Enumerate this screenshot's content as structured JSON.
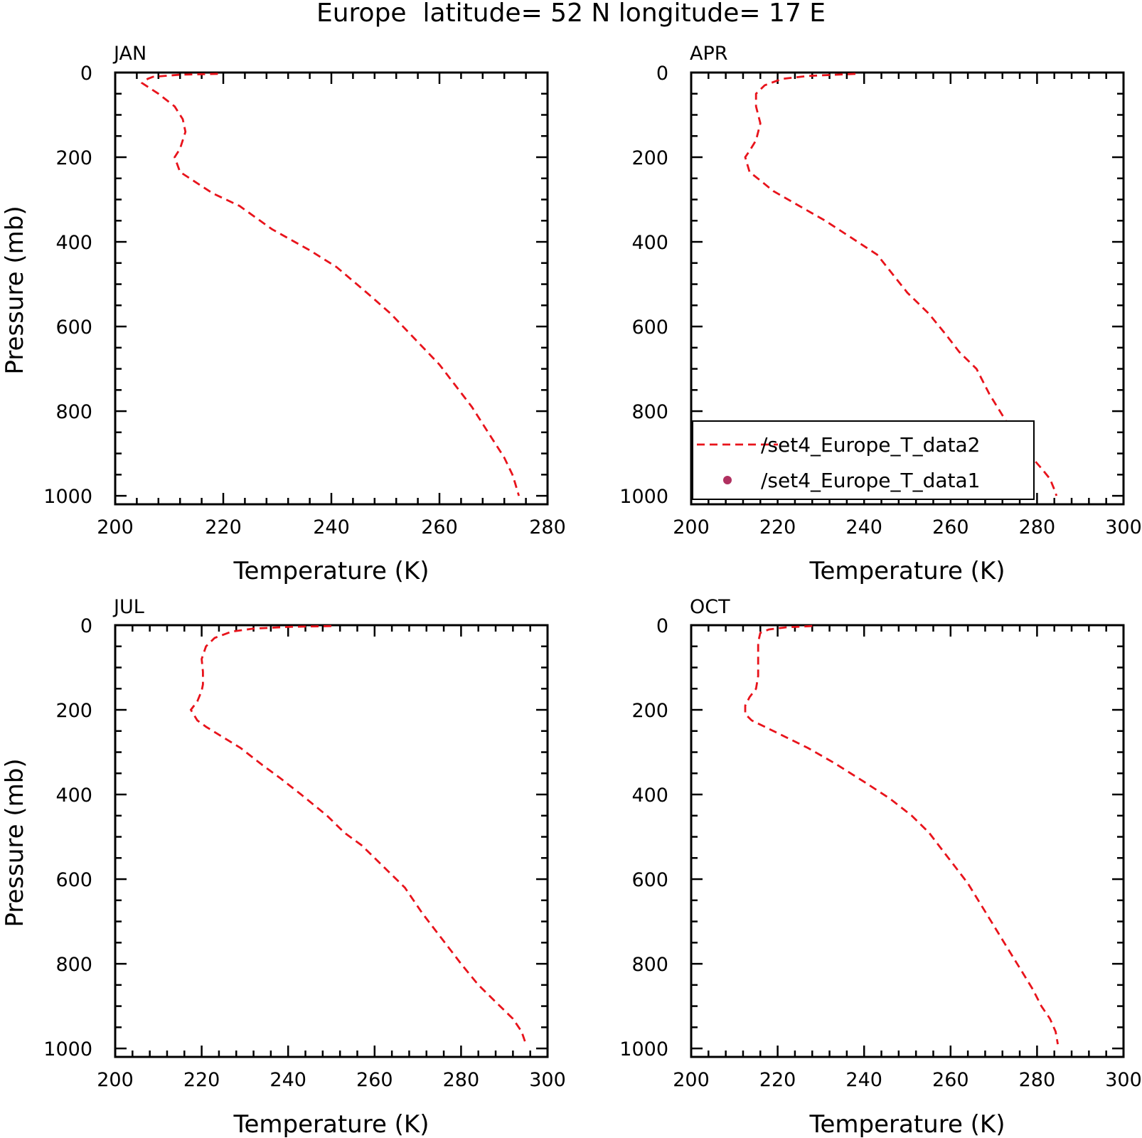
{
  "figure": {
    "title": "Europe  latitude= 52 N longitude= 17 E"
  },
  "chart_data": [
    {
      "type": "line",
      "title": "JAN",
      "xlabel": "Temperature (K)",
      "ylabel": "Pressure (mb)",
      "xlim": [
        200,
        280
      ],
      "ylim": [
        1020,
        0
      ],
      "y_inverted": true,
      "xticks": [
        200,
        220,
        240,
        260,
        280
      ],
      "yticks": [
        0,
        200,
        400,
        600,
        800,
        1000
      ],
      "grid": false,
      "series": [
        {
          "name": "/set4_Europe_T_data2",
          "color": "#e8131b",
          "style": "dashed",
          "points": [
            [
              219,
              3
            ],
            [
              212,
              5
            ],
            [
              207,
              10
            ],
            [
              206,
              15
            ],
            [
              205,
              25
            ],
            [
              208,
              50
            ],
            [
              211,
              80
            ],
            [
              212.5,
              110
            ],
            [
              213,
              140
            ],
            [
              212,
              180
            ],
            [
              211,
              200
            ],
            [
              212,
              235
            ],
            [
              215,
              260
            ],
            [
              218,
              285
            ],
            [
              223,
              315
            ],
            [
              229,
              370
            ],
            [
              236,
              420
            ],
            [
              241,
              460
            ],
            [
              247,
              525
            ],
            [
              251,
              570
            ],
            [
              254,
              610
            ],
            [
              257,
              650
            ],
            [
              260,
              690
            ],
            [
              263,
              740
            ],
            [
              266,
              790
            ],
            [
              268,
              830
            ],
            [
              270,
              870
            ],
            [
              272,
              910
            ],
            [
              273.5,
              950
            ],
            [
              274,
              970
            ],
            [
              274.7,
              1000
            ]
          ]
        }
      ]
    },
    {
      "type": "line",
      "title": "APR",
      "xlabel": "Temperature (K)",
      "ylabel": "",
      "xlim": [
        200,
        300
      ],
      "ylim": [
        1020,
        0
      ],
      "y_inverted": true,
      "xticks": [
        200,
        220,
        240,
        260,
        280,
        300
      ],
      "yticks": [
        0,
        200,
        400,
        600,
        800,
        1000
      ],
      "grid": false,
      "legend": {
        "placement": "lower-left",
        "entries": [
          {
            "label": "/set4_Europe_T_data2",
            "color": "#e8131b",
            "marker": "dashed-line"
          },
          {
            "label": "/set4_Europe_T_data1",
            "color": "#b03060",
            "marker": "dot"
          }
        ]
      },
      "series": [
        {
          "name": "/set4_Europe_T_data2",
          "color": "#e8131b",
          "style": "dashed",
          "points": [
            [
              238,
              3
            ],
            [
              227,
              8
            ],
            [
              221,
              15
            ],
            [
              217,
              30
            ],
            [
              215,
              50
            ],
            [
              215,
              80
            ],
            [
              216,
              120
            ],
            [
              215,
              160
            ],
            [
              213.5,
              185
            ],
            [
              212.5,
              200
            ],
            [
              213.5,
              235
            ],
            [
              216,
              255
            ],
            [
              219,
              280
            ],
            [
              225,
              315
            ],
            [
              231,
              350
            ],
            [
              237,
              390
            ],
            [
              243,
              430
            ],
            [
              250,
              520
            ],
            [
              255,
              570
            ],
            [
              259,
              620
            ],
            [
              262,
              660
            ],
            [
              266,
              700
            ],
            [
              269,
              760
            ],
            [
              272,
              810
            ],
            [
              275,
              860
            ],
            [
              278,
              900
            ],
            [
              281,
              935
            ],
            [
              283,
              960
            ],
            [
              284,
              985
            ],
            [
              284.5,
              1000
            ]
          ]
        }
      ]
    },
    {
      "type": "line",
      "title": "JUL",
      "xlabel": "Temperature (K)",
      "ylabel": "Pressure (mb)",
      "xlim": [
        200,
        300
      ],
      "ylim": [
        1020,
        0
      ],
      "y_inverted": true,
      "xticks": [
        200,
        220,
        240,
        260,
        280,
        300
      ],
      "yticks": [
        0,
        200,
        400,
        600,
        800,
        1000
      ],
      "grid": false,
      "series": [
        {
          "name": "/set4_Europe_T_data2",
          "color": "#e8131b",
          "style": "dashed",
          "points": [
            [
              250,
              2
            ],
            [
              240,
              4
            ],
            [
              232,
              8
            ],
            [
              227,
              15
            ],
            [
              223,
              30
            ],
            [
              221,
              50
            ],
            [
              220,
              80
            ],
            [
              220.3,
              110
            ],
            [
              220.3,
              140
            ],
            [
              220,
              155
            ],
            [
              219,
              180
            ],
            [
              217.5,
              200
            ],
            [
              219,
              225
            ],
            [
              221,
              240
            ],
            [
              225,
              265
            ],
            [
              229,
              290
            ],
            [
              234,
              330
            ],
            [
              238,
              360
            ],
            [
              243,
              400
            ],
            [
              249,
              450
            ],
            [
              253,
              490
            ],
            [
              257,
              520
            ],
            [
              262,
              570
            ],
            [
              267,
              620
            ],
            [
              271,
              680
            ],
            [
              274,
              720
            ],
            [
              277,
              760
            ],
            [
              280,
              800
            ],
            [
              284,
              850
            ],
            [
              288,
              890
            ],
            [
              292,
              930
            ],
            [
              294,
              960
            ],
            [
              295,
              990
            ]
          ]
        }
      ]
    },
    {
      "type": "line",
      "title": "OCT",
      "xlabel": "Temperature (K)",
      "ylabel": "",
      "xlim": [
        200,
        300
      ],
      "ylim": [
        1020,
        0
      ],
      "y_inverted": true,
      "xticks": [
        200,
        220,
        240,
        260,
        280,
        300
      ],
      "yticks": [
        0,
        200,
        400,
        600,
        800,
        1000
      ],
      "grid": false,
      "series": [
        {
          "name": "/set4_Europe_T_data2",
          "color": "#e8131b",
          "style": "dashed",
          "points": [
            [
              228,
              2
            ],
            [
              222,
              5
            ],
            [
              218,
              10
            ],
            [
              216,
              18
            ],
            [
              215.5,
              40
            ],
            [
              215.5,
              80
            ],
            [
              215.5,
              120
            ],
            [
              215,
              150
            ],
            [
              213.5,
              170
            ],
            [
              212.5,
              190
            ],
            [
              212.5,
              210
            ],
            [
              214,
              225
            ],
            [
              217,
              240
            ],
            [
              222,
              265
            ],
            [
              227,
              290
            ],
            [
              233,
              325
            ],
            [
              240,
              370
            ],
            [
              246,
              410
            ],
            [
              251,
              450
            ],
            [
              255,
              490
            ],
            [
              258,
              530
            ],
            [
              261,
              570
            ],
            [
              264,
              610
            ],
            [
              267,
              660
            ],
            [
              270,
              710
            ],
            [
              273,
              760
            ],
            [
              276,
              810
            ],
            [
              279,
              860
            ],
            [
              281,
              900
            ],
            [
              283,
              930
            ],
            [
              284.3,
              960
            ],
            [
              284.8,
              990
            ]
          ]
        }
      ]
    }
  ]
}
